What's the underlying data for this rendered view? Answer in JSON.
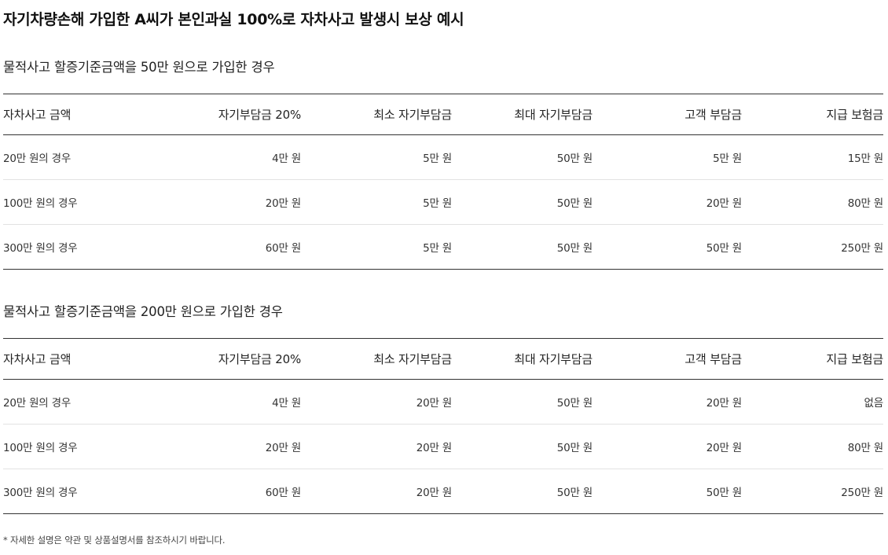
{
  "title": "자기차량손해 가입한 A씨가 본인과실 100%로 자차사고 발생시 보상 예시",
  "sections": [
    {
      "title": "물적사고 할증기준금액을 50만 원으로 가입한 경우",
      "headers": [
        "자차사고 금액",
        "자기부담금 20%",
        "최소 자기부담금",
        "최대 자기부담금",
        "고객 부담금",
        "지급 보험금"
      ],
      "rows": [
        [
          "20만 원의 경우",
          "4만 원",
          "5만 원",
          "50만 원",
          "5만 원",
          "15만 원"
        ],
        [
          "100만 원의 경우",
          "20만 원",
          "5만 원",
          "50만 원",
          "20만 원",
          "80만 원"
        ],
        [
          "300만 원의 경우",
          "60만 원",
          "5만 원",
          "50만 원",
          "50만 원",
          "250만 원"
        ]
      ]
    },
    {
      "title": "물적사고 할증기준금액을 200만 원으로 가입한 경우",
      "headers": [
        "자차사고 금액",
        "자기부담금 20%",
        "최소 자기부담금",
        "최대 자기부담금",
        "고객 부담금",
        "지급 보험금"
      ],
      "rows": [
        [
          "20만 원의 경우",
          "4만 원",
          "20만 원",
          "50만 원",
          "20만 원",
          "없음"
        ],
        [
          "100만 원의 경우",
          "20만 원",
          "20만 원",
          "50만 원",
          "20만 원",
          "80만 원"
        ],
        [
          "300만 원의 경우",
          "60만 원",
          "20만 원",
          "50만 원",
          "50만 원",
          "250만 원"
        ]
      ]
    }
  ],
  "footnote": "* 자세한 설명은 약관 및 상품설명서를 참조하시기 바랍니다."
}
